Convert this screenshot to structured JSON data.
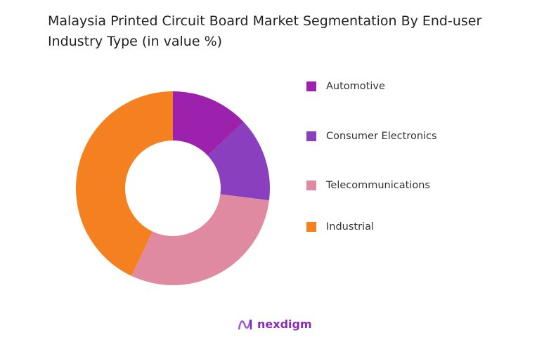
{
  "chart_data": {
    "type": "pie",
    "title": "Malaysia Printed Circuit Board Market Segmentation By End-user Industry Type (in value %)",
    "donut": true,
    "legend_position": "right",
    "categories": [
      "Automotive",
      "Consumer Electronics",
      "Telecommunications",
      "Industrial"
    ],
    "values": [
      13,
      14,
      30,
      43
    ],
    "colors": [
      "#9C22AE",
      "#8A3FBF",
      "#E08AA2",
      "#F58020"
    ]
  },
  "brand": {
    "name": "nexdigm",
    "color": "#8a2bb5"
  }
}
